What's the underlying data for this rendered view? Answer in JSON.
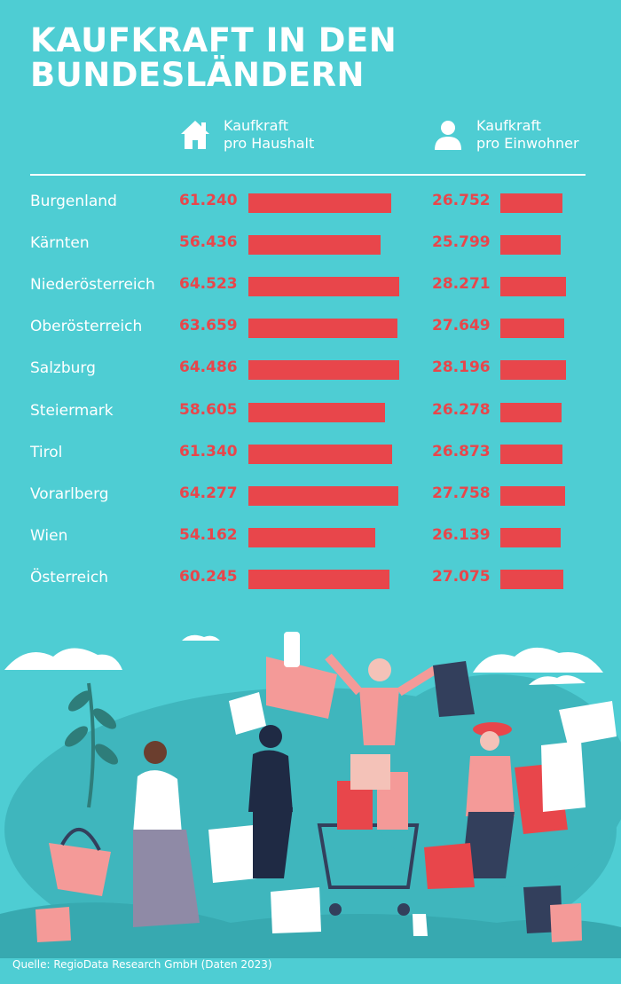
{
  "header": {
    "title_line1": "KAUFKRAFT IN DEN",
    "title_line2": "BUNDESLÄNDERN"
  },
  "columns": {
    "household": {
      "line1": "Kaufkraft",
      "line2": "pro Haushalt",
      "icon": "house-icon"
    },
    "resident": {
      "line1": "Kaufkraft",
      "line2": "pro Einwohner",
      "icon": "person-icon"
    }
  },
  "chart_data": {
    "type": "bar",
    "categories": [
      "Burgenland",
      "Kärnten",
      "Niederösterreich",
      "Oberösterreich",
      "Salzburg",
      "Steiermark",
      "Tirol",
      "Vorarlberg",
      "Wien",
      "Österreich"
    ],
    "series": [
      {
        "name": "Kaufkraft pro Haushalt",
        "values": [
          61240,
          56436,
          64523,
          63659,
          64486,
          58605,
          61340,
          64277,
          54162,
          60245
        ],
        "labels": [
          "61.240",
          "56.436",
          "64.523",
          "63.659",
          "64.486",
          "58.605",
          "61.340",
          "64.277",
          "54.162",
          "60.245"
        ]
      },
      {
        "name": "Kaufkraft pro Einwohner",
        "values": [
          26752,
          25799,
          28271,
          27649,
          28196,
          26278,
          26873,
          27758,
          26139,
          27075
        ],
        "labels": [
          "26.752",
          "25.799",
          "28.271",
          "27.649",
          "28.196",
          "26.278",
          "26.873",
          "27.758",
          "26.139",
          "27.075"
        ]
      }
    ]
  },
  "colors": {
    "background": "#4ecdd3",
    "bar": "#e8464b",
    "text": "#ffffff"
  },
  "footer": {
    "source": "Quelle: RegioData Research GmbH (Daten 2023)"
  }
}
